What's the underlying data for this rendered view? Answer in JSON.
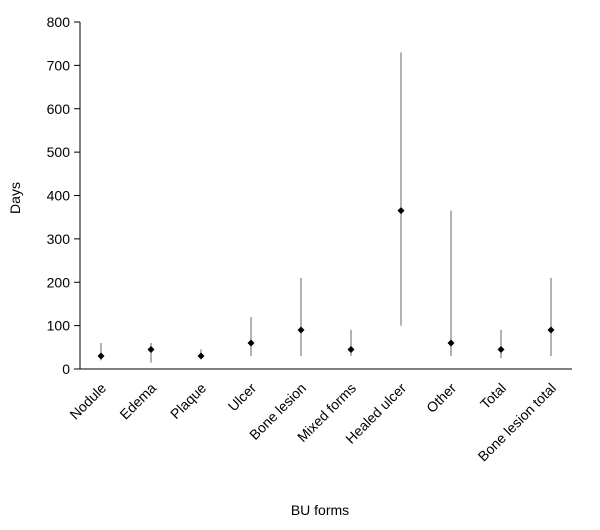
{
  "chart_data": {
    "type": "range",
    "x_label": "BU forms",
    "y_label": "Days",
    "categories": [
      "Nodule",
      "Edema",
      "Plaque",
      "Ulcer",
      "Bone lesion",
      "Mixed forms",
      "Healed ulcer",
      "Other",
      "Total",
      "Bone lesion total"
    ],
    "values": [
      30,
      45,
      30,
      60,
      90,
      45,
      365,
      60,
      45,
      90
    ],
    "low": [
      20,
      15,
      28,
      30,
      30,
      30,
      100,
      30,
      25,
      30
    ],
    "high": [
      60,
      60,
      45,
      120,
      210,
      90,
      730,
      365,
      90,
      210
    ],
    "color": "#000000",
    "range_color": "#808080",
    "ylim": [
      0,
      800
    ],
    "yticks": [
      0,
      100,
      200,
      300,
      400,
      500,
      600,
      700,
      800
    ]
  }
}
